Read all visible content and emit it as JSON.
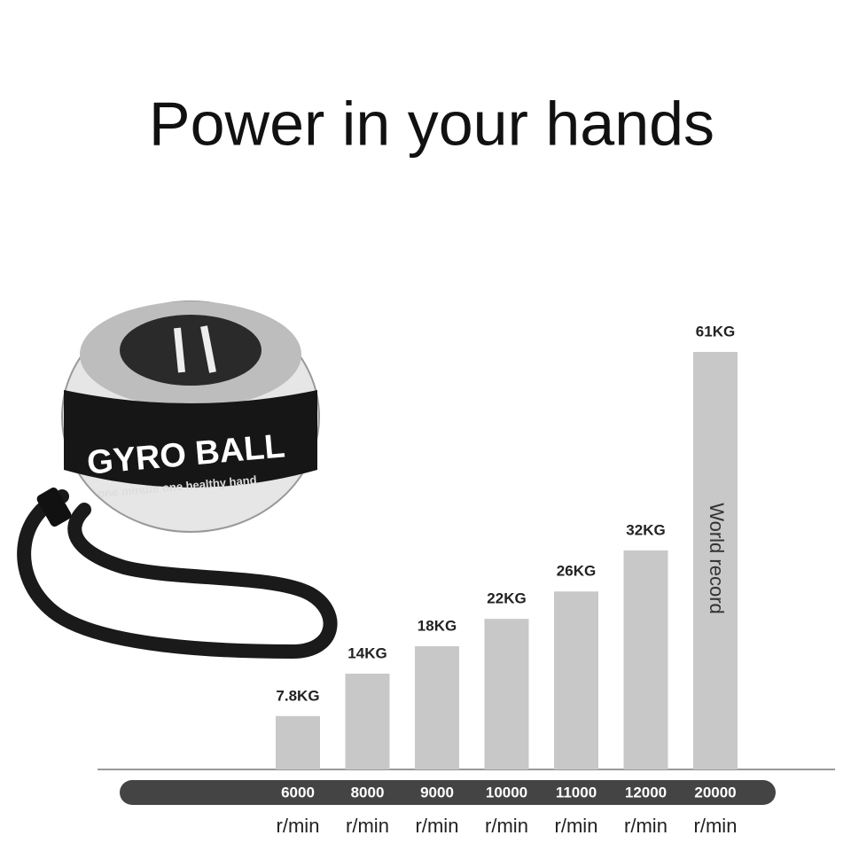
{
  "chart_data": {
    "type": "bar",
    "title": "Power in your hands",
    "categories": [
      "6000",
      "8000",
      "9000",
      "10000",
      "11000",
      "12000",
      "20000"
    ],
    "x_unit": "r/min",
    "values": [
      7.8,
      14,
      18,
      22,
      26,
      32,
      61
    ],
    "value_labels": [
      "7.8KG",
      "14KG",
      "18KG",
      "22KG",
      "26KG",
      "32KG",
      "61KG"
    ],
    "annotation": "World record",
    "color": "#c8c8c8",
    "ylim": [
      0,
      61
    ]
  },
  "product": {
    "name": "GYRO BALL",
    "slogan": "one minute  one healthy hand"
  }
}
